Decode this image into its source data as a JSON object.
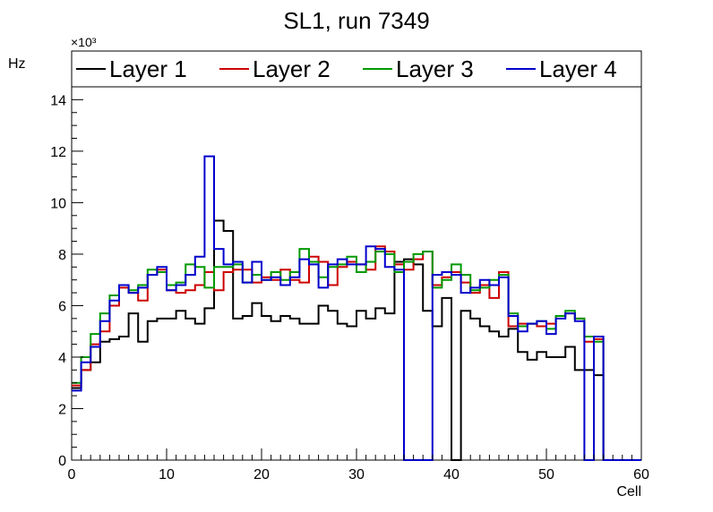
{
  "chart_data": {
    "type": "histogram-step",
    "title": "SL1, run 7349",
    "xlabel": "Cell",
    "ylabel": "Hz",
    "y_exponent_label": "×10³",
    "y_scale_factor": 1000,
    "xlim": [
      0,
      60
    ],
    "ylim": [
      0,
      14.5
    ],
    "x_ticks": [
      0,
      10,
      20,
      30,
      40,
      50,
      60
    ],
    "y_ticks": [
      0,
      2,
      4,
      6,
      8,
      10,
      12,
      14
    ],
    "grid": false,
    "legend_position": "top",
    "bin_width": 1,
    "bin_start": 0,
    "series": [
      {
        "name": "Layer 1",
        "color": "#000000",
        "values": [
          2.8,
          3.5,
          3.8,
          4.6,
          4.7,
          4.8,
          5.7,
          4.6,
          5.4,
          5.5,
          5.5,
          5.8,
          5.5,
          5.3,
          5.9,
          9.3,
          8.9,
          5.5,
          5.6,
          6.1,
          5.6,
          5.4,
          5.6,
          5.5,
          5.3,
          5.3,
          6.0,
          5.8,
          5.3,
          5.2,
          5.8,
          5.5,
          5.9,
          5.7,
          7.7,
          7.8,
          7.6,
          5.8,
          5.2,
          6.3,
          0.0,
          5.8,
          5.5,
          5.2,
          5.0,
          4.8,
          5.1,
          4.2,
          3.9,
          4.2,
          4.0,
          4.0,
          4.4,
          3.5,
          3.5,
          3.3,
          0,
          0,
          0,
          0
        ]
      },
      {
        "name": "Layer 2",
        "color": "#cc0000",
        "values": [
          2.9,
          3.5,
          4.5,
          5.0,
          6.0,
          6.7,
          6.5,
          6.2,
          7.2,
          7.4,
          6.6,
          6.5,
          6.6,
          6.8,
          7.3,
          6.6,
          7.3,
          7.4,
          7.4,
          6.9,
          7.1,
          7.0,
          7.4,
          7.0,
          6.9,
          7.9,
          7.7,
          6.8,
          7.5,
          7.7,
          7.6,
          7.4,
          8.3,
          8.1,
          7.6,
          7.4,
          7.8,
          8.1,
          6.8,
          7.1,
          7.3,
          6.9,
          6.5,
          6.8,
          6.3,
          7.3,
          5.2,
          5.3,
          5.3,
          5.2,
          5.3,
          5.6,
          5.7,
          5.5,
          4.6,
          4.7,
          0,
          0,
          0,
          0
        ]
      },
      {
        "name": "Layer 3",
        "color": "#009900",
        "values": [
          3.0,
          4.0,
          4.9,
          5.7,
          6.4,
          6.8,
          6.6,
          6.8,
          7.4,
          7.3,
          6.8,
          6.9,
          7.6,
          7.5,
          6.7,
          7.5,
          7.5,
          7.6,
          6.9,
          7.2,
          7.0,
          7.3,
          7.0,
          7.3,
          8.2,
          7.7,
          7.1,
          7.5,
          7.6,
          7.9,
          7.3,
          7.7,
          8.1,
          8.0,
          7.3,
          7.7,
          8.0,
          8.1,
          6.7,
          7.0,
          7.6,
          7.2,
          6.6,
          6.7,
          7.0,
          7.2,
          5.7,
          5.2,
          5.3,
          5.4,
          5.1,
          5.6,
          5.8,
          5.5,
          4.8,
          4.6,
          0,
          0,
          0,
          0
        ]
      },
      {
        "name": "Layer 4",
        "color": "#0000cc",
        "values": [
          2.7,
          3.8,
          4.4,
          5.4,
          6.2,
          6.8,
          6.5,
          6.7,
          7.2,
          7.5,
          6.6,
          6.8,
          7.2,
          7.9,
          11.8,
          8.2,
          7.6,
          7.7,
          6.9,
          7.7,
          7.0,
          7.1,
          6.8,
          7.1,
          7.8,
          7.6,
          6.7,
          7.6,
          7.8,
          7.6,
          7.6,
          8.3,
          8.2,
          7.5,
          7.4,
          0.0,
          0.0,
          0.0,
          7.2,
          7.3,
          7.2,
          6.5,
          6.7,
          7.0,
          6.8,
          7.1,
          5.6,
          5.0,
          5.3,
          5.4,
          4.9,
          5.5,
          5.7,
          5.4,
          0.0,
          4.8,
          0,
          0,
          0,
          0
        ]
      }
    ]
  }
}
